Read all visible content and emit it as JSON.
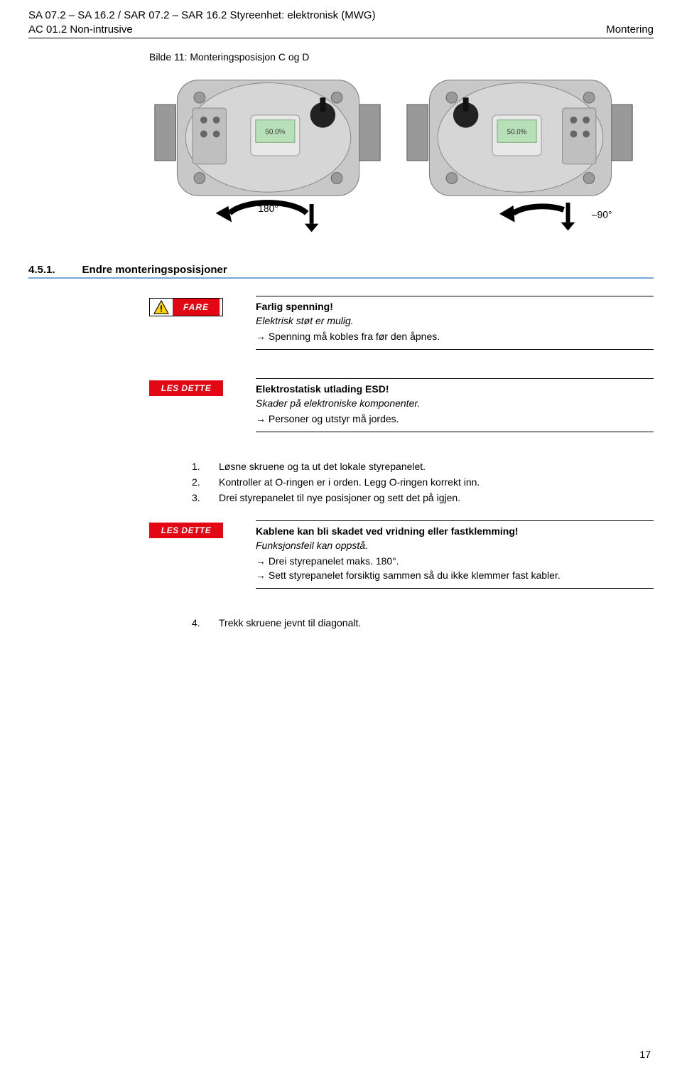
{
  "header": {
    "line1_left": "SA 07.2 – SA 16.2 / SAR 07.2 – SAR 16.2 Styreenhet: elektronisk (MWG)",
    "line2_left": "AC 01.2 Non-intrusive",
    "right": "Montering"
  },
  "figure": {
    "caption": "Bilde 11: Monteringsposisjon C og D",
    "angle_left": "180°",
    "angle_right": "–90°"
  },
  "section": {
    "number": "4.5.1.",
    "title": "Endre monteringsposisjoner",
    "underline_color": "#7aa7d9"
  },
  "danger": {
    "label": "FARE",
    "title": "Farlig spenning!",
    "subtitle": "Elektrisk støt er mulig.",
    "action": "Spenning må kobles fra før den åpnes."
  },
  "notice1": {
    "label": "LES DETTE",
    "title": "Elektrostatisk utlading ESD!",
    "subtitle": "Skader på elektroniske komponenter.",
    "action": "Personer og utstyr må jordes."
  },
  "steps_a": [
    "Løsne skruene og ta ut det lokale styrepanelet.",
    "Kontroller at O-ringen er i orden. Legg O-ringen korrekt inn.",
    "Drei styrepanelet til nye posisjoner og sett det på igjen."
  ],
  "notice2": {
    "label": "LES DETTE",
    "title": "Kablene kan bli skadet ved vridning eller fastklemming!",
    "subtitle": "Funksjonsfeil kan oppstå.",
    "actions": [
      "Drei styrepanelet maks. 180°.",
      "Sett styrepanelet forsiktig sammen så du ikke klemmer fast kabler."
    ]
  },
  "steps_b": [
    "Trekk skruene jevnt til diagonalt."
  ],
  "steps_b_start": "4.",
  "page_number": "17",
  "colors": {
    "danger_red": "#e30613",
    "underline_blue": "#7aa7d9"
  }
}
